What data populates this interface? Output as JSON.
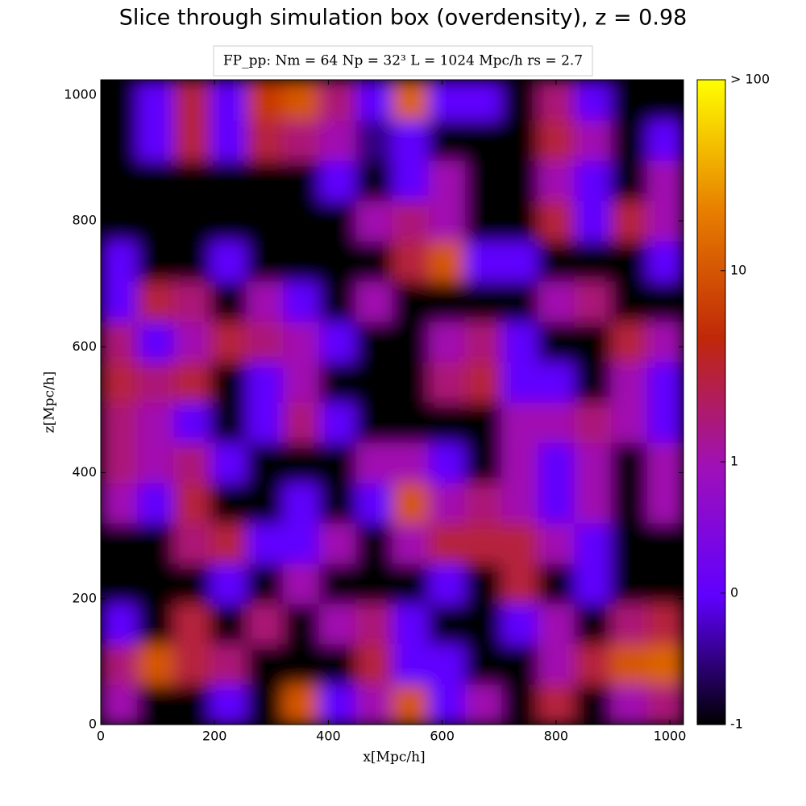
{
  "chart_data": {
    "type": "heatmap",
    "title": "Slice through simulation box (overdensity), z = 0.98",
    "annotation": "FP_pp:  Nm = 64  Np = 32³   L = 1024 Mpc/h  rs = 2.7",
    "x_label": "x[Mpc/h]",
    "y_label": "z[Mpc/h]",
    "xlim": [
      0,
      1024
    ],
    "ylim": [
      0,
      1024
    ],
    "xticks": [
      0,
      200,
      400,
      600,
      800,
      1000
    ],
    "yticks": [
      0,
      200,
      400,
      600,
      800,
      1000
    ],
    "colorbar_ticks": [
      -1,
      0,
      1,
      10,
      {
        "value": 100,
        "label": "> 100"
      }
    ],
    "colormap": [
      "#000000",
      "#6000ff",
      "#a010b8",
      "#c02808",
      "#e88000",
      "#ffff00"
    ],
    "values": [
      [
        1,
        -1,
        -1,
        0,
        -1,
        10,
        0,
        1,
        10,
        0,
        1,
        -1,
        5,
        -1,
        1,
        3
      ],
      [
        3,
        10,
        5,
        3,
        -1,
        -1,
        -1,
        5,
        0,
        0,
        -1,
        -1,
        1,
        5,
        10,
        20
      ],
      [
        0,
        -1,
        5,
        -1,
        3,
        -1,
        1,
        3,
        0,
        -1,
        -1,
        0,
        1,
        -1,
        3,
        5
      ],
      [
        -1,
        -1,
        -1,
        0,
        -1,
        1,
        -1,
        -1,
        -1,
        0,
        -1,
        5,
        -1,
        0,
        -1,
        -1
      ],
      [
        -1,
        -1,
        3,
        5,
        0,
        0,
        1,
        -1,
        1,
        5,
        5,
        5,
        1,
        0,
        -1,
        -1
      ],
      [
        1,
        0,
        5,
        -1,
        -1,
        0,
        -1,
        0,
        10,
        1,
        3,
        1,
        0,
        1,
        -1,
        1
      ],
      [
        3,
        1,
        3,
        0,
        -1,
        -1,
        -1,
        1,
        1,
        0,
        -1,
        1,
        0,
        1,
        -1,
        1
      ],
      [
        3,
        1,
        0,
        -1,
        0,
        3,
        0,
        -1,
        -1,
        -1,
        -1,
        1,
        1,
        3,
        1,
        0
      ],
      [
        5,
        3,
        5,
        -1,
        0,
        1,
        -1,
        -1,
        -1,
        3,
        5,
        0,
        0,
        -1,
        1,
        0
      ],
      [
        3,
        0,
        1,
        5,
        3,
        1,
        0,
        -1,
        -1,
        1,
        3,
        0,
        -1,
        -1,
        5,
        1
      ],
      [
        0,
        5,
        3,
        -1,
        1,
        0,
        -1,
        1,
        -1,
        -1,
        -1,
        -1,
        1,
        3,
        -1,
        -1
      ],
      [
        0,
        -1,
        -1,
        0,
        -1,
        -1,
        -1,
        -1,
        5,
        10,
        0,
        0,
        -1,
        -1,
        -1,
        0
      ],
      [
        -1,
        -1,
        -1,
        -1,
        -1,
        -1,
        -1,
        1,
        3,
        1,
        -1,
        -1,
        5,
        0,
        5,
        1
      ],
      [
        -1,
        -1,
        -1,
        -1,
        -1,
        -1,
        0,
        -1,
        0,
        1,
        -1,
        -1,
        1,
        0,
        -1,
        1
      ],
      [
        -1,
        0,
        5,
        0,
        5,
        3,
        1,
        -0.5,
        0,
        -1,
        -1,
        -1,
        5,
        1,
        -1,
        0
      ],
      [
        -1,
        0,
        5,
        0,
        8,
        10,
        3,
        0,
        20,
        0,
        0,
        -1,
        3,
        0,
        -1,
        -1
      ]
    ]
  }
}
